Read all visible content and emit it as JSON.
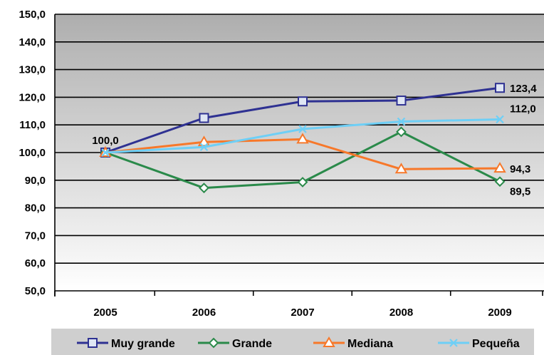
{
  "chart_data": {
    "type": "line",
    "categories": [
      "2005",
      "2006",
      "2007",
      "2008",
      "2009"
    ],
    "ylim": [
      50,
      150
    ],
    "yticks": [
      "50,0",
      "60,0",
      "70,0",
      "80,0",
      "90,0",
      "100,0",
      "110,0",
      "120,0",
      "130,0",
      "140,0",
      "150,0"
    ],
    "grid": true,
    "legend_position": "bottom",
    "series": [
      {
        "name": "Muy grande",
        "values": [
          100.0,
          112.5,
          118.5,
          118.8,
          123.4
        ],
        "color": "#2e3192",
        "marker": "square"
      },
      {
        "name": "Grande",
        "values": [
          100.0,
          87.2,
          89.3,
          107.5,
          89.5
        ],
        "color": "#2a8a4a",
        "marker": "diamond"
      },
      {
        "name": "Mediana",
        "values": [
          100.0,
          103.8,
          104.8,
          94.0,
          94.3
        ],
        "color": "#f7782a",
        "marker": "triangle"
      },
      {
        "name": "Pequeña",
        "values": [
          100.0,
          102.0,
          108.5,
          111.2,
          112.0
        ],
        "color": "#6ecff6",
        "marker": "x"
      }
    ],
    "data_labels": [
      {
        "text": "100,0",
        "series": 0,
        "index": 0
      },
      {
        "text": "123,4",
        "series": 0,
        "index": 4
      },
      {
        "text": "112,0",
        "series": 3,
        "index": 4
      },
      {
        "text": "94,3",
        "series": 2,
        "index": 4
      },
      {
        "text": "89,5",
        "series": 1,
        "index": 4
      }
    ]
  }
}
